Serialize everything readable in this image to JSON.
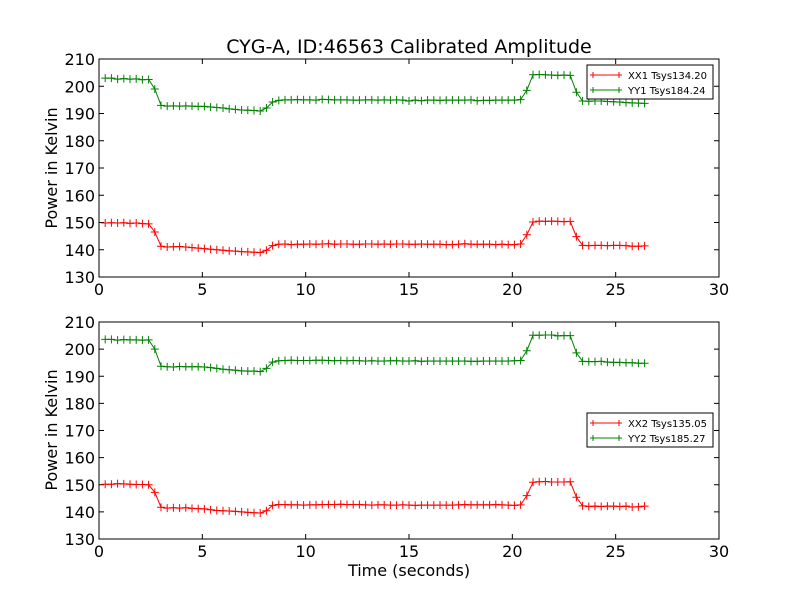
{
  "chart_data": [
    {
      "type": "line",
      "title": "CYG-A, ID:46563 Calibrated Amplitude",
      "xlabel": "",
      "ylabel": "Power in Kelvin",
      "xlim": [
        0,
        30
      ],
      "ylim": [
        130,
        210
      ],
      "xticks": [
        "0",
        "5",
        "10",
        "15",
        "20",
        "25",
        "30"
      ],
      "yticks": [
        "130",
        "140",
        "150",
        "160",
        "170",
        "180",
        "190",
        "200",
        "210"
      ],
      "grid": false,
      "legend_position": "top-right",
      "x": [
        0.3,
        0.6,
        0.9,
        1.2,
        1.5,
        1.8,
        2.1,
        2.4,
        2.7,
        3.0,
        3.3,
        3.6,
        3.9,
        4.2,
        4.5,
        4.8,
        5.1,
        5.4,
        5.7,
        6.0,
        6.3,
        6.6,
        6.9,
        7.2,
        7.5,
        7.8,
        8.1,
        8.4,
        8.7,
        9.0,
        9.3,
        9.6,
        9.9,
        10.2,
        10.5,
        10.8,
        11.1,
        11.4,
        11.7,
        12.0,
        12.3,
        12.6,
        12.9,
        13.2,
        13.5,
        13.8,
        14.1,
        14.4,
        14.7,
        15.0,
        15.3,
        15.6,
        15.9,
        16.2,
        16.5,
        16.8,
        17.1,
        17.4,
        17.7,
        18.0,
        18.3,
        18.6,
        18.9,
        19.2,
        19.5,
        19.8,
        20.1,
        20.4,
        20.7,
        21.0,
        21.3,
        21.6,
        21.9,
        22.2,
        22.5,
        22.8,
        23.1,
        23.4,
        23.7,
        24.0,
        24.3,
        24.6,
        24.9,
        25.2,
        25.5,
        25.8,
        26.1,
        26.4
      ],
      "series": [
        {
          "name": "XX1 Tsys134.20",
          "color": "#ff0000",
          "values": [
            149.8,
            149.9,
            149.8,
            149.9,
            149.7,
            149.8,
            149.6,
            149.5,
            146.5,
            141.3,
            141.0,
            141.1,
            141.2,
            141.0,
            140.8,
            140.6,
            140.4,
            140.2,
            140.0,
            139.8,
            139.6,
            139.5,
            139.3,
            139.2,
            139.1,
            139.0,
            139.8,
            141.5,
            142.0,
            142.1,
            141.9,
            142.0,
            142.0,
            142.1,
            142.0,
            142.1,
            142.2,
            142.0,
            142.1,
            142.1,
            142.0,
            142.0,
            142.1,
            142.1,
            142.0,
            142.1,
            142.0,
            142.1,
            142.1,
            142.0,
            142.0,
            142.1,
            142.0,
            142.0,
            142.0,
            141.9,
            141.9,
            142.0,
            142.2,
            142.0,
            142.0,
            142.0,
            142.0,
            141.9,
            142.0,
            141.9,
            141.9,
            142.1,
            145.5,
            150.2,
            150.5,
            150.4,
            150.5,
            150.4,
            150.3,
            150.4,
            144.8,
            141.6,
            141.5,
            141.6,
            141.6,
            141.5,
            141.6,
            141.6,
            141.5,
            141.3,
            141.3,
            141.4
          ]
        },
        {
          "name": "YY1 Tsys184.24",
          "color": "#008000",
          "values": [
            203.0,
            203.0,
            202.6,
            202.8,
            202.6,
            202.7,
            202.4,
            202.5,
            199.0,
            193.0,
            192.7,
            192.8,
            192.7,
            192.8,
            192.7,
            192.6,
            192.6,
            192.4,
            192.2,
            192.0,
            191.7,
            191.5,
            191.3,
            191.2,
            191.1,
            190.9,
            192.0,
            194.2,
            194.8,
            195.0,
            195.0,
            195.1,
            195.0,
            195.0,
            194.9,
            195.2,
            195.1,
            195.0,
            195.0,
            195.0,
            194.9,
            194.9,
            195.0,
            195.0,
            194.9,
            195.0,
            194.9,
            195.0,
            194.9,
            194.6,
            194.9,
            194.7,
            194.9,
            194.9,
            194.8,
            194.9,
            194.9,
            194.9,
            194.9,
            195.0,
            194.7,
            194.8,
            194.8,
            194.9,
            194.9,
            194.9,
            194.9,
            195.1,
            198.5,
            204.2,
            204.3,
            204.2,
            204.1,
            204.0,
            204.1,
            204.0,
            197.8,
            194.6,
            194.5,
            194.6,
            194.6,
            194.4,
            194.3,
            194.2,
            194.0,
            193.9,
            193.8,
            193.7
          ]
        }
      ]
    },
    {
      "type": "line",
      "title": "",
      "xlabel": "Time (seconds)",
      "ylabel": "Power in Kelvin",
      "xlim": [
        0,
        30
      ],
      "ylim": [
        130,
        210
      ],
      "xticks": [
        "0",
        "5",
        "10",
        "15",
        "20",
        "25",
        "30"
      ],
      "yticks": [
        "130",
        "140",
        "150",
        "160",
        "170",
        "180",
        "190",
        "200",
        "210"
      ],
      "grid": false,
      "legend_position": "center-right",
      "x": [
        0.3,
        0.6,
        0.9,
        1.2,
        1.5,
        1.8,
        2.1,
        2.4,
        2.7,
        3.0,
        3.3,
        3.6,
        3.9,
        4.2,
        4.5,
        4.8,
        5.1,
        5.4,
        5.7,
        6.0,
        6.3,
        6.6,
        6.9,
        7.2,
        7.5,
        7.8,
        8.1,
        8.4,
        8.7,
        9.0,
        9.3,
        9.6,
        9.9,
        10.2,
        10.5,
        10.8,
        11.1,
        11.4,
        11.7,
        12.0,
        12.3,
        12.6,
        12.9,
        13.2,
        13.5,
        13.8,
        14.1,
        14.4,
        14.7,
        15.0,
        15.3,
        15.6,
        15.9,
        16.2,
        16.5,
        16.8,
        17.1,
        17.4,
        17.7,
        18.0,
        18.3,
        18.6,
        18.9,
        19.2,
        19.5,
        19.8,
        20.1,
        20.4,
        20.7,
        21.0,
        21.3,
        21.6,
        21.9,
        22.2,
        22.5,
        22.8,
        23.1,
        23.4,
        23.7,
        24.0,
        24.3,
        24.6,
        24.9,
        25.2,
        25.5,
        25.8,
        26.1,
        26.4
      ],
      "series": [
        {
          "name": "XX2 Tsys135.05",
          "color": "#ff0000",
          "values": [
            150.2,
            150.2,
            150.4,
            150.3,
            150.2,
            150.1,
            150.1,
            150.0,
            147.2,
            141.7,
            141.4,
            141.5,
            141.4,
            141.5,
            141.3,
            141.2,
            141.1,
            140.8,
            140.5,
            140.4,
            140.3,
            140.2,
            140.0,
            139.8,
            139.7,
            139.6,
            140.4,
            142.4,
            142.7,
            142.7,
            142.6,
            142.6,
            142.5,
            142.6,
            142.6,
            142.7,
            142.7,
            142.7,
            142.8,
            142.7,
            142.7,
            142.7,
            142.6,
            142.5,
            142.6,
            142.6,
            142.5,
            142.5,
            142.6,
            142.5,
            142.4,
            142.5,
            142.5,
            142.5,
            142.5,
            142.5,
            142.5,
            142.6,
            142.7,
            142.6,
            142.6,
            142.6,
            142.6,
            142.7,
            142.6,
            142.5,
            142.4,
            142.6,
            146.0,
            150.9,
            151.1,
            151.2,
            151.0,
            151.0,
            151.0,
            151.1,
            145.4,
            142.2,
            142.0,
            142.1,
            142.0,
            142.1,
            142.1,
            142.0,
            142.1,
            141.8,
            141.9,
            142.1
          ]
        },
        {
          "name": "YY2 Tsys185.27",
          "color": "#008000",
          "values": [
            203.6,
            203.6,
            203.3,
            203.5,
            203.4,
            203.4,
            203.3,
            203.4,
            200.0,
            193.7,
            193.5,
            193.4,
            193.6,
            193.5,
            193.5,
            193.5,
            193.4,
            193.2,
            192.9,
            192.6,
            192.4,
            192.2,
            192.0,
            191.9,
            191.9,
            191.7,
            192.9,
            195.2,
            195.7,
            195.8,
            195.9,
            195.8,
            195.8,
            195.8,
            195.9,
            195.9,
            195.8,
            195.7,
            195.8,
            195.7,
            195.8,
            195.7,
            195.6,
            195.7,
            195.6,
            195.6,
            195.7,
            195.7,
            195.6,
            195.6,
            195.7,
            195.5,
            195.6,
            195.6,
            195.6,
            195.6,
            195.6,
            195.6,
            195.6,
            195.5,
            195.5,
            195.6,
            195.6,
            195.6,
            195.6,
            195.6,
            195.7,
            195.8,
            199.4,
            205.1,
            205.1,
            205.2,
            205.2,
            204.9,
            205.0,
            205.0,
            198.6,
            195.5,
            195.4,
            195.4,
            195.5,
            195.2,
            195.1,
            195.1,
            195.0,
            195.0,
            194.8,
            194.8
          ]
        }
      ]
    }
  ]
}
